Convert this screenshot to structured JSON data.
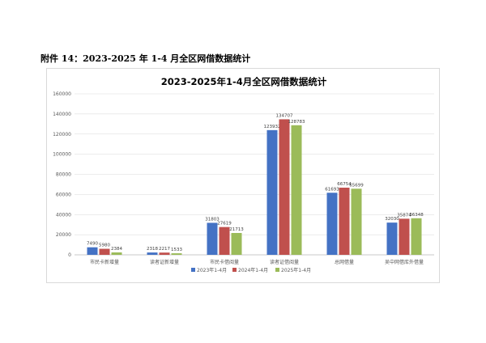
{
  "caption": "附件 14：2023-2025 年 1-4 月全区网借数据统计",
  "chart_data": {
    "type": "bar",
    "title": "2023-2025年1-4月全区网借数据统计",
    "categories": [
      "市民卡新增量",
      "读者证新增量",
      "市民卡借阅量",
      "读者证借阅量",
      "总网借量",
      "吴中网借库外借量"
    ],
    "series": [
      {
        "name": "2023年1-4月",
        "color": "#4472c4",
        "values": [
          7490,
          2318,
          31803,
          123932,
          61693,
          32030
        ]
      },
      {
        "name": "2024年1-4月",
        "color": "#c0504d",
        "values": [
          5980,
          2217,
          27619,
          134707,
          66754,
          35874
        ]
      },
      {
        "name": "2025年1-4月",
        "color": "#9bbb59",
        "values": [
          2384,
          1533,
          21713,
          128783,
          65699,
          36348
        ]
      }
    ],
    "ylim": [
      0,
      160000
    ],
    "yticks": [
      0,
      20000,
      40000,
      60000,
      80000,
      100000,
      120000,
      140000,
      160000
    ],
    "grid": true,
    "legend": "bottom"
  }
}
